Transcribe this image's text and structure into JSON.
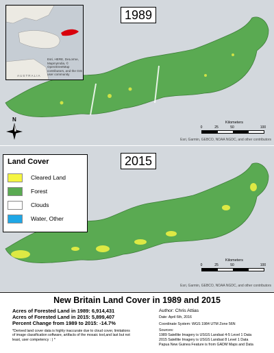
{
  "main_title": "New Britain Land Cover in 1989 and 2015",
  "panels": [
    {
      "year": "1989",
      "attribution": "Esri, Garmin, GEBCO, NOAA NGDC, and other contributors"
    },
    {
      "year": "2015",
      "attribution": "Esri, Garmin, GEBCO, NOAA NGDC, and other contributors"
    }
  ],
  "inset": {
    "attribution": "Esri, HERE, DeLorme, MapmyIndia, © OpenStreetMap contributors, and the GIS user community",
    "country_label": "AUSTRALIA"
  },
  "north_arrow": {
    "label": "N"
  },
  "scale_bar": {
    "title": "Kilometers",
    "ticks": [
      "0",
      "25",
      "50",
      "100"
    ]
  },
  "legend": {
    "title": "Land Cover",
    "items": [
      {
        "label": "Cleared Land",
        "color": "#f5f542"
      },
      {
        "label": "Forest",
        "color": "#5aaa52"
      },
      {
        "label": "Clouds",
        "color": "#ffffff"
      },
      {
        "label": "Water, Other",
        "color": "#1fa7e6"
      }
    ]
  },
  "stats": {
    "line1": "Acres of Forested Land in 1989: 6,914,431",
    "line2": "Acres of Forested Land in 2015: 5,899,407",
    "line3": "Percent Change from 1989 to 2015: -14.7%",
    "footnote": "*Derived land cover data is highly inaccurate due to cloud cover, limitations of image classification software, artifacts of the mosaic tool,and last but not least, user competency : ) *"
  },
  "meta": {
    "author": "Author: Chris Attias",
    "date": "Date: April 6th, 2016",
    "coord": "Coordinate System: WGS 1984 UTM Zone 56N",
    "sources_title": "Sources:",
    "sources": [
      "1989 Satellite Imagery is USGS Landsat 4-5 Level 1 Data",
      "2015 Satellite Imagery is USGS Landsat 8 Level 1 Data",
      "Papua New Guinea Feature is from GADM Maps and Data"
    ]
  },
  "colors": {
    "forest": "#5aaa52",
    "cleared": "#f5f542",
    "water": "#1fa7e6",
    "sea": "#d3d8dd",
    "highlight": "#d8000c"
  }
}
